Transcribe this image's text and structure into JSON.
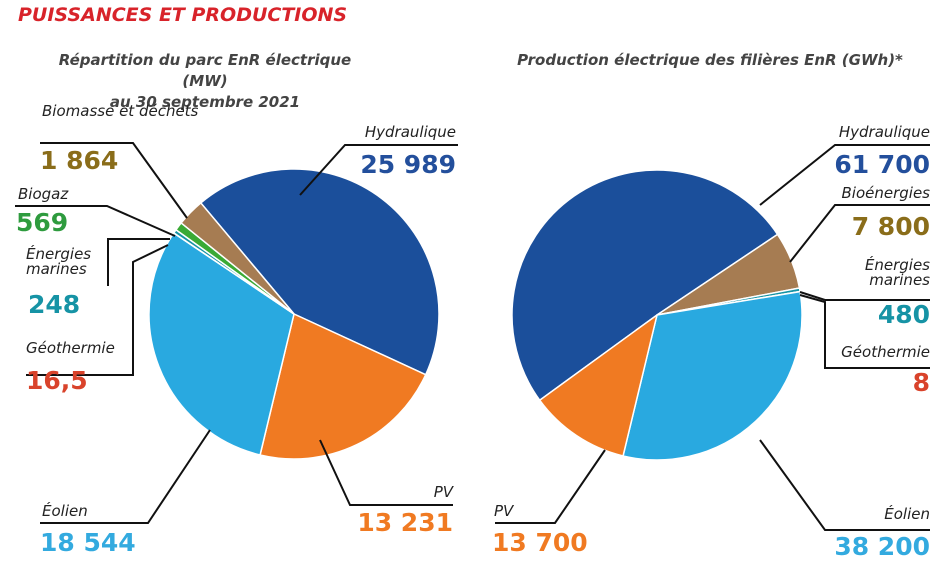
{
  "header": {
    "title": "PUISSANCES ET PRODUCTIONS"
  },
  "chart_data": [
    {
      "type": "pie",
      "title": "Répartition du parc EnR électrique (MW)",
      "subtitle": "au 30 septembre 2021",
      "slices": [
        {
          "label": "Hydraulique",
          "value": 25989,
          "display": "25 989",
          "color": "#1b4f9b",
          "text_color": "#234f9c"
        },
        {
          "label": "PV",
          "value": 13231,
          "display": "13 231",
          "color": "#f07a22",
          "text_color": "#f07a22"
        },
        {
          "label": "Éolien",
          "value": 18544,
          "display": "18 544",
          "color": "#29a9e0",
          "text_color": "#33aadf"
        },
        {
          "label": "Géothermie",
          "value": 16.5,
          "display": "16,5",
          "color": "#d9432b",
          "text_color": "#d9432b"
        },
        {
          "label": "Énergies marines",
          "value": 248,
          "display": "248",
          "color": "#1693a5",
          "text_color": "#1693a5"
        },
        {
          "label": "Biogaz",
          "value": 569,
          "display": "569",
          "color": "#3aaa35",
          "text_color": "#2e9b3e"
        },
        {
          "label": "Biomasse et déchets",
          "value": 1864,
          "display": "1 864",
          "color": "#a67c52",
          "text_color": "#8a6d1a"
        }
      ]
    },
    {
      "type": "pie",
      "title": "Production électrique des filières EnR (GWh)*",
      "slices": [
        {
          "label": "Hydraulique",
          "value": 61700,
          "display": "61 700",
          "color": "#1b4f9b",
          "text_color": "#234f9c"
        },
        {
          "label": "Bioénergies",
          "value": 7800,
          "display": "7 800",
          "color": "#a67c52",
          "text_color": "#8a6d1a"
        },
        {
          "label": "Énergies marines",
          "value": 480,
          "display": "480",
          "color": "#1693a5",
          "text_color": "#1693a5"
        },
        {
          "label": "Géothermie",
          "value": 8,
          "display": "8",
          "color": "#d9432b",
          "text_color": "#d9432b"
        },
        {
          "label": "Éolien",
          "value": 38200,
          "display": "38 200",
          "color": "#29a9e0",
          "text_color": "#33aadf"
        },
        {
          "label": "PV",
          "value": 13700,
          "display": "13 700",
          "color": "#f07a22",
          "text_color": "#f07a22"
        }
      ]
    }
  ]
}
